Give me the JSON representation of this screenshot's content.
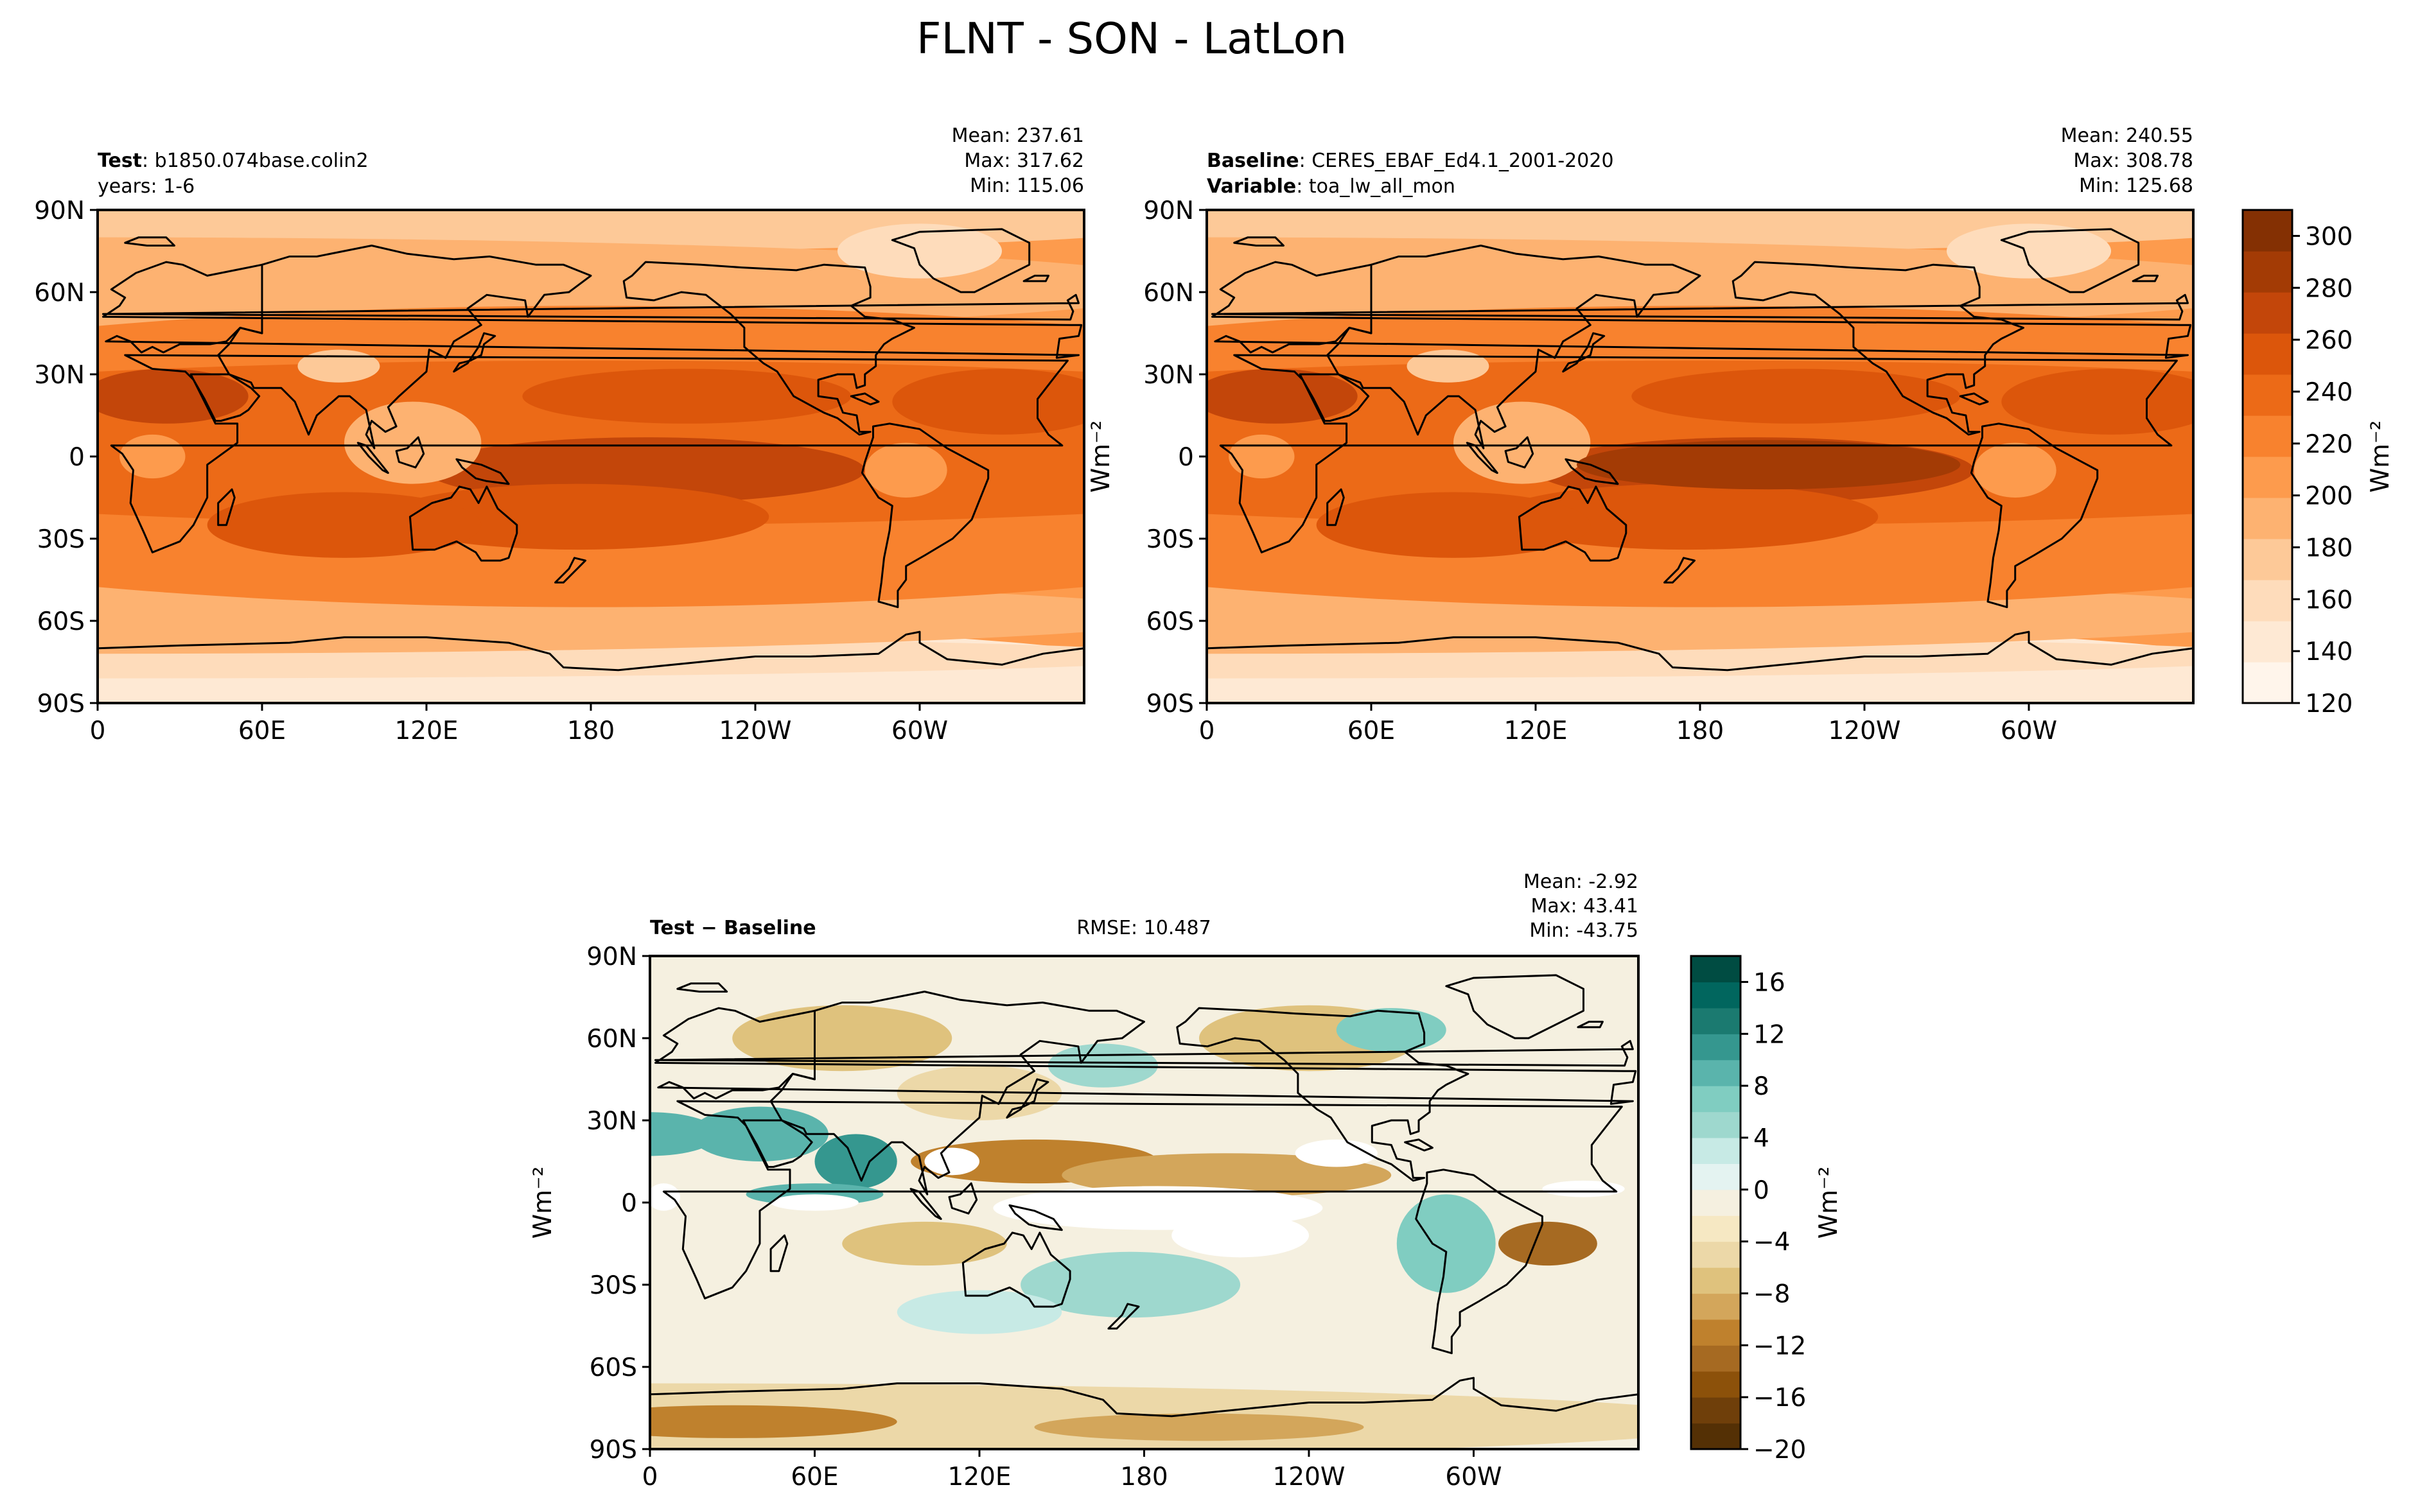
{
  "figure": {
    "title": "FLNT - SON - LatLon"
  },
  "chart_data": [
    {
      "type": "heatmap",
      "panel": "test",
      "map_projection": "cylindrical equidistant, central longitude 180",
      "header": {
        "label_bold": "Test",
        "label_value": ": b1850.074base.colin2",
        "line2": "years: 1-6",
        "stats": [
          "Mean: 237.61",
          "Max: 317.62",
          "Min: 115.06"
        ]
      },
      "stats": {
        "mean": 237.61,
        "max": 317.62,
        "min": 115.06
      },
      "x_ticks": [
        "0",
        "60E",
        "120E",
        "180",
        "120W",
        "60W"
      ],
      "y_ticks": [
        "90N",
        "60N",
        "30N",
        "0",
        "30S",
        "60S",
        "90S"
      ],
      "xlim": [
        0,
        360
      ],
      "ylim": [
        -90,
        90
      ],
      "colormap": "Oranges"
    },
    {
      "type": "heatmap",
      "panel": "baseline",
      "map_projection": "cylindrical equidistant, central longitude 180",
      "header": {
        "label_bold": "Baseline",
        "label_value": ": CERES_EBAF_Ed4.1_2001-2020",
        "line2_bold": "Variable",
        "line2_value": ": toa_lw_all_mon",
        "stats": [
          "Mean: 240.55",
          "Max: 308.78",
          "Min: 125.68"
        ]
      },
      "stats": {
        "mean": 240.55,
        "max": 308.78,
        "min": 125.68
      },
      "x_ticks": [
        "0",
        "60E",
        "120E",
        "180",
        "120W",
        "60W"
      ],
      "y_ticks": [
        "90N",
        "60N",
        "30N",
        "0",
        "30S",
        "60S",
        "90S"
      ],
      "ylabel": "Wm⁻²",
      "colormap": "Oranges",
      "colorbar": {
        "label": "Wm⁻²",
        "range": [
          120,
          310
        ],
        "ticks": [
          "120",
          "140",
          "160",
          "180",
          "200",
          "220",
          "240",
          "260",
          "280",
          "300"
        ],
        "tick_values": [
          120,
          140,
          160,
          180,
          200,
          220,
          240,
          260,
          280,
          300
        ],
        "colors": [
          "#fff5eb",
          "#fee9d4",
          "#fedcbb",
          "#fdc998",
          "#fdb271",
          "#fd9b4d",
          "#f8822e",
          "#ec6a17",
          "#dc560b",
          "#c3460a",
          "#a33b05",
          "#843003"
        ]
      }
    },
    {
      "type": "heatmap",
      "panel": "difference",
      "map_projection": "cylindrical equidistant, central longitude 180",
      "header": {
        "label": "Test − Baseline",
        "center": "RMSE: 10.487",
        "stats": [
          "Mean: -2.92",
          "Max: 43.41",
          "Min: -43.75"
        ]
      },
      "stats": {
        "mean": -2.92,
        "max": 43.41,
        "min": -43.75,
        "rmse": 10.487
      },
      "x_ticks": [
        "0",
        "60E",
        "120E",
        "180",
        "120W",
        "60W"
      ],
      "y_ticks": [
        "90N",
        "60N",
        "30N",
        "0",
        "30S",
        "60S",
        "90S"
      ],
      "ylabel": "Wm⁻²",
      "colormap": "BrBG",
      "colorbar": {
        "label": "Wm⁻²",
        "range": [
          -20,
          18
        ],
        "ticks": [
          "−20",
          "−16",
          "−12",
          "−8",
          "−4",
          "0",
          "4",
          "8",
          "12",
          "16"
        ],
        "tick_values": [
          -20,
          -16,
          -12,
          -8,
          -4,
          0,
          4,
          8,
          12,
          16
        ],
        "colors": [
          "#543005",
          "#6f3f0a",
          "#8c510a",
          "#a66a22",
          "#bf812d",
          "#d3a65b",
          "#dfc27d",
          "#ecd8a8",
          "#f6e8c3",
          "#f5f0e0",
          "#e4f3f1",
          "#c7eae5",
          "#9ed8ce",
          "#80cdc1",
          "#5ab4ac",
          "#35978f",
          "#1b7a70",
          "#01665e",
          "#004c42"
        ]
      }
    }
  ]
}
